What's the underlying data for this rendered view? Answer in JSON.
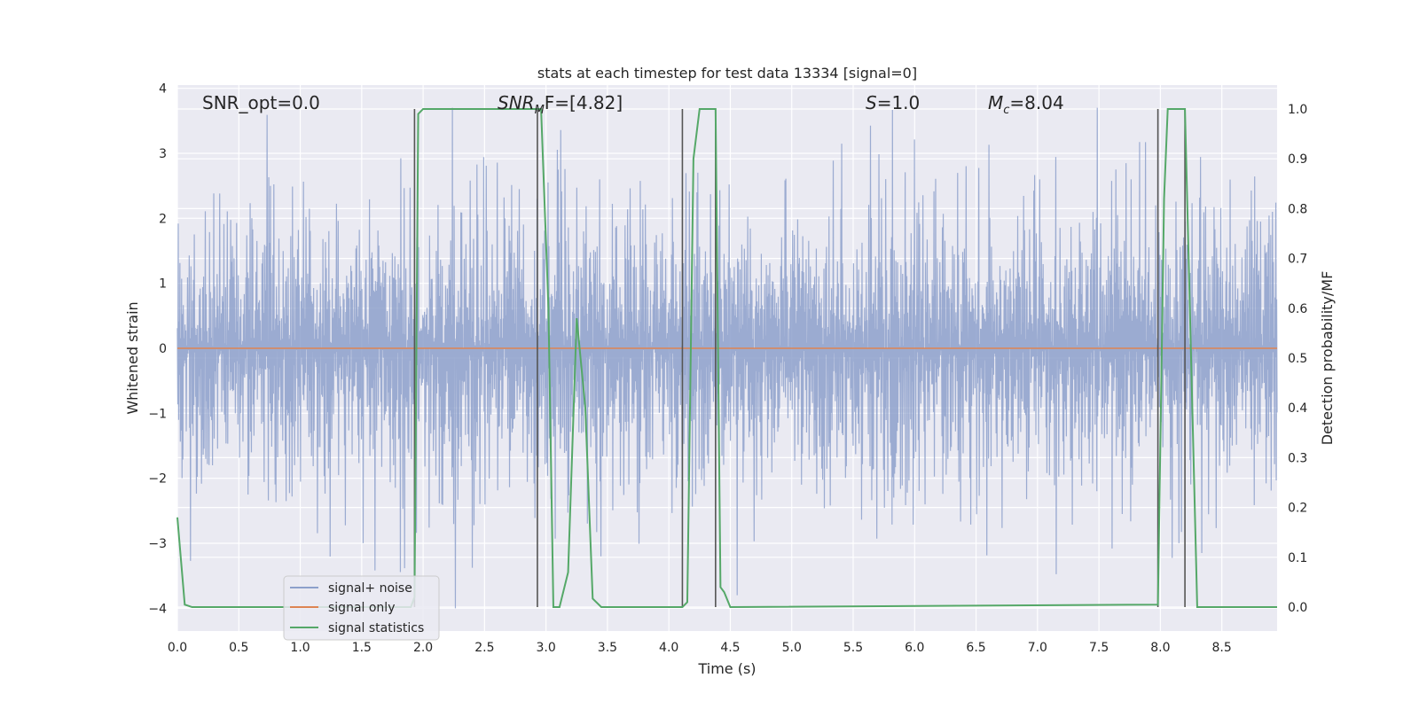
{
  "chart_data": {
    "type": "line",
    "title": "stats at each timestep for test data 13334 [signal=0]",
    "xlabel": "Time (s)",
    "ylabel": "Whitened strain",
    "y2label": "Detection probability/MF",
    "xlim": [
      0,
      8.95
    ],
    "ylim": [
      -4.35,
      4.05
    ],
    "y2lim": [
      -0.048,
      1.048
    ],
    "x_ticks": [
      "0.0",
      "0.5",
      "1.0",
      "1.5",
      "2.0",
      "2.5",
      "3.0",
      "3.5",
      "4.0",
      "4.5",
      "5.0",
      "5.5",
      "6.0",
      "6.5",
      "7.0",
      "7.5",
      "8.0",
      "8.5"
    ],
    "y_ticks": [
      "−4",
      "−3",
      "−2",
      "−1",
      "0",
      "1",
      "2",
      "3",
      "4"
    ],
    "y2_ticks": [
      "0.0",
      "0.1",
      "0.2",
      "0.3",
      "0.4",
      "0.5",
      "0.6",
      "0.7",
      "0.8",
      "0.9",
      "1.0"
    ],
    "grid": true,
    "legend_position": "lower-left",
    "annotations": {
      "snr_opt": "SNR_opt=0.0",
      "snr_mf_main": "SNR",
      "snr_mf_sub": "M",
      "snr_mf_rest": "F=[4.82]",
      "s_main": "S",
      "s_rest": "=1.0",
      "mc_main": "M",
      "mc_sub": "c",
      "mc_rest": "=8.04"
    },
    "series": [
      {
        "name": "signal+ noise",
        "color": "#8da0cb",
        "axis": "left",
        "noise_band_typical": [
          -1.7,
          1.7
        ],
        "noise_extreme_range": [
          -4.0,
          3.7
        ]
      },
      {
        "name": "signal only",
        "color": "#dd8452",
        "axis": "left",
        "x": [
          0,
          8.95
        ],
        "y": [
          0,
          0
        ]
      },
      {
        "name": "signal statistics",
        "color": "#55a868",
        "axis": "right",
        "x": [
          0,
          0.06,
          0.12,
          1.9,
          1.93,
          1.96,
          2.0,
          2.05,
          2.1,
          2.9,
          2.96,
          3.02,
          3.06,
          3.11,
          3.18,
          3.25,
          3.32,
          3.38,
          3.45,
          4.11,
          4.15,
          4.2,
          4.25,
          4.32,
          4.38,
          4.42,
          4.45,
          4.5,
          7.98,
          8.03,
          8.06,
          8.12,
          8.2,
          8.26,
          8.3,
          8.95
        ],
        "y": [
          0.18,
          0.005,
          0.0,
          0.0,
          0.02,
          0.99,
          1.0,
          1.0,
          1.0,
          1.0,
          1.0,
          0.6,
          0.0,
          0.0,
          0.07,
          0.58,
          0.4,
          0.017,
          0.0,
          0.0,
          0.01,
          0.9,
          1.0,
          1.0,
          1.0,
          0.04,
          0.03,
          0.0,
          0.005,
          0.82,
          1.0,
          1.0,
          1.0,
          0.4,
          0.0,
          0.0
        ]
      }
    ],
    "vertical_lines_x": [
      1.93,
      2.93,
      4.11,
      4.38,
      7.98,
      8.2
    ]
  }
}
